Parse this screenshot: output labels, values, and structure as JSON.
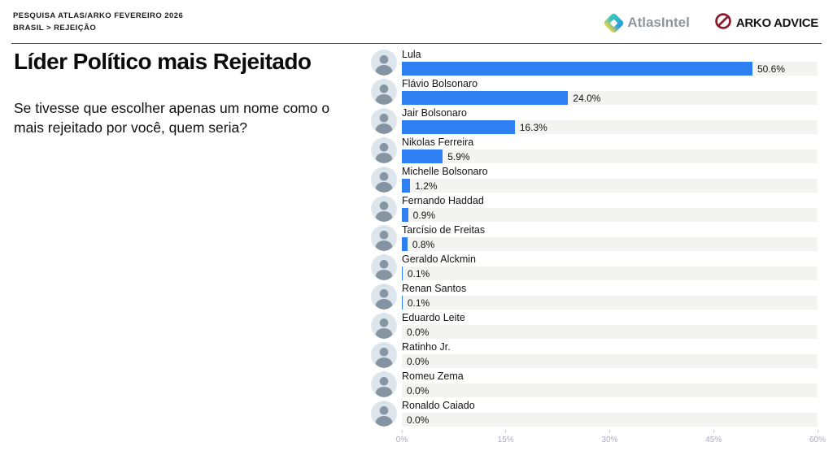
{
  "header": {
    "line1": "PESQUISA ATLAS/ARKO FEVEREIRO 2026",
    "line2": "BRASIL > REJEIÇÃO",
    "logos": {
      "atlasintel_label": "AtlasIntel",
      "arko_label": "ARKO ADVICE"
    }
  },
  "panel": {
    "title": "Líder Político mais Rejeitado",
    "question": "Se tivesse que escolher apenas um nome como o mais rejeitado por você, quem seria?"
  },
  "chart_data": {
    "type": "bar",
    "orientation": "horizontal",
    "title": "Líder Político mais Rejeitado",
    "categories": [
      "Lula",
      "Flávio Bolsonaro",
      "Jair Bolsonaro",
      "Nikolas Ferreira",
      "Michelle Bolsonaro",
      "Fernando Haddad",
      "Tarcísio de Freitas",
      "Geraldo Alckmin",
      "Renan Santos",
      "Eduardo Leite",
      "Ratinho Jr.",
      "Romeu Zema",
      "Ronaldo Caiado"
    ],
    "values": [
      50.6,
      24.0,
      16.3,
      5.9,
      1.2,
      0.9,
      0.8,
      0.1,
      0.1,
      0.0,
      0.0,
      0.0,
      0.0
    ],
    "value_labels": [
      "50.6%",
      "24.0%",
      "16.3%",
      "5.9%",
      "1.2%",
      "0.9%",
      "0.8%",
      "0.1%",
      "0.1%",
      "0.0%",
      "0.0%",
      "0.0%",
      "0.0%"
    ],
    "xlim": [
      0,
      60
    ],
    "x_ticks": [
      "0%",
      "15%",
      "30%",
      "45%",
      "60%"
    ],
    "x_tick_values": [
      0,
      15,
      30,
      45,
      60
    ],
    "grid": false,
    "legend": false,
    "bar_color": "#2e80f2",
    "track_color": "#f3f3f1",
    "axis_label_color": "#a9aec2"
  }
}
